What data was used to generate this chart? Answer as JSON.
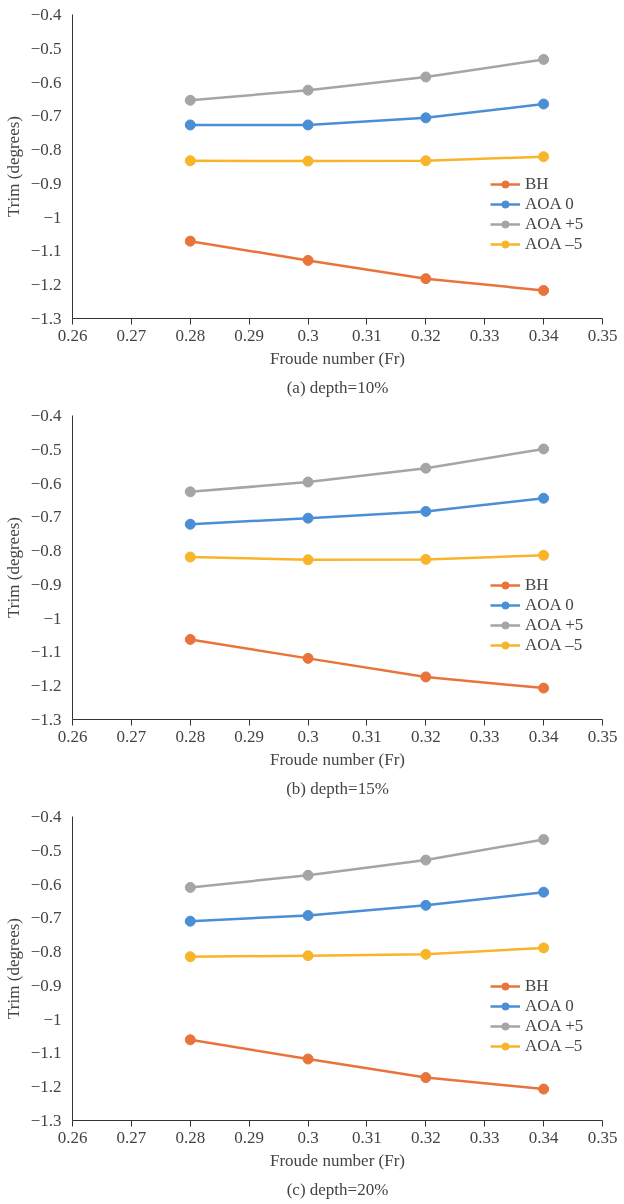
{
  "chart_data": [
    {
      "type": "line",
      "title": "(a) depth=10%",
      "xlabel": "Froude number (Fr)",
      "ylabel": "Trim (degrees)",
      "x": [
        0.28,
        0.3,
        0.32,
        0.34
      ],
      "series": [
        {
          "name": "BH",
          "color": "#e8743b",
          "values": [
            -1.071,
            -1.128,
            -1.182,
            -1.217
          ]
        },
        {
          "name": "AOA 0",
          "color": "#4a8fd6",
          "values": [
            -0.727,
            -0.727,
            -0.706,
            -0.665
          ]
        },
        {
          "name": "AOA +5",
          "color": "#a5a5a5",
          "values": [
            -0.654,
            -0.624,
            -0.585,
            -0.533
          ]
        },
        {
          "name": "AOA –5",
          "color": "#f9b52a",
          "values": [
            -0.833,
            -0.834,
            -0.833,
            -0.821
          ]
        }
      ],
      "xlim": [
        0.26,
        0.35
      ],
      "xticks": [
        0.26,
        0.27,
        0.28,
        0.29,
        0.3,
        0.31,
        0.32,
        0.33,
        0.34,
        0.35
      ],
      "ylim": [
        -1.3,
        -0.4
      ],
      "yticks": [
        {
          "value": -1.3,
          "label": "−1.3"
        },
        {
          "value": -1.2,
          "label": "−1.2"
        },
        {
          "value": -1.1,
          "label": "−1.1"
        },
        {
          "value": -1.0,
          "label": "−1"
        },
        {
          "value": -0.9,
          "label": "−0.9"
        },
        {
          "value": -0.8,
          "label": "−0.8"
        },
        {
          "value": -0.7,
          "label": "−0.7"
        },
        {
          "value": -0.6,
          "label": "−0.6"
        },
        {
          "value": -0.5,
          "label": "−0.5"
        },
        {
          "value": -0.4,
          "label": "−0.4"
        }
      ],
      "grid": false,
      "legend": "right",
      "marker": "circle",
      "line_style": "solid"
    },
    {
      "type": "line",
      "title": "(b) depth=15%",
      "xlabel": "Froude number (Fr)",
      "ylabel": "Trim (degrees)",
      "x": [
        0.28,
        0.3,
        0.32,
        0.34
      ],
      "series": [
        {
          "name": "BH",
          "color": "#e8743b",
          "values": [
            -1.063,
            -1.119,
            -1.174,
            -1.207
          ]
        },
        {
          "name": "AOA 0",
          "color": "#4a8fd6",
          "values": [
            -0.722,
            -0.704,
            -0.684,
            -0.645
          ]
        },
        {
          "name": "AOA +5",
          "color": "#a5a5a5",
          "values": [
            -0.626,
            -0.597,
            -0.556,
            -0.499
          ]
        },
        {
          "name": "AOA –5",
          "color": "#f9b52a",
          "values": [
            -0.819,
            -0.827,
            -0.826,
            -0.814
          ]
        }
      ],
      "xlim": [
        0.26,
        0.35
      ],
      "xticks": [
        0.26,
        0.27,
        0.28,
        0.29,
        0.3,
        0.31,
        0.32,
        0.33,
        0.34,
        0.35
      ],
      "ylim": [
        -1.3,
        -0.4
      ],
      "yticks": [
        {
          "value": -1.3,
          "label": "−1.3"
        },
        {
          "value": -1.2,
          "label": "−1.2"
        },
        {
          "value": -1.1,
          "label": "−1.1"
        },
        {
          "value": -1.0,
          "label": "−1"
        },
        {
          "value": -0.9,
          "label": "−0.9"
        },
        {
          "value": -0.8,
          "label": "−0.8"
        },
        {
          "value": -0.7,
          "label": "−0.7"
        },
        {
          "value": -0.6,
          "label": "−0.6"
        },
        {
          "value": -0.5,
          "label": "−0.5"
        },
        {
          "value": -0.4,
          "label": "−0.4"
        }
      ],
      "grid": false,
      "legend": "right",
      "marker": "circle",
      "line_style": "solid"
    },
    {
      "type": "line",
      "title": "(c) depth=20%",
      "xlabel": "Froude number (Fr)",
      "ylabel": "Trim (degrees)",
      "x": [
        0.28,
        0.3,
        0.32,
        0.34
      ],
      "series": [
        {
          "name": "BH",
          "color": "#e8743b",
          "values": [
            -1.061,
            -1.118,
            -1.173,
            -1.207
          ]
        },
        {
          "name": "AOA 0",
          "color": "#4a8fd6",
          "values": [
            -0.71,
            -0.693,
            -0.663,
            -0.624
          ]
        },
        {
          "name": "AOA +5",
          "color": "#a5a5a5",
          "values": [
            -0.61,
            -0.574,
            -0.529,
            -0.468
          ]
        },
        {
          "name": "AOA –5",
          "color": "#f9b52a",
          "values": [
            -0.815,
            -0.812,
            -0.808,
            -0.789
          ]
        }
      ],
      "xlim": [
        0.26,
        0.35
      ],
      "xticks": [
        0.26,
        0.27,
        0.28,
        0.29,
        0.3,
        0.31,
        0.32,
        0.33,
        0.34,
        0.35
      ],
      "ylim": [
        -1.3,
        -0.4
      ],
      "yticks": [
        {
          "value": -1.3,
          "label": "−1.3"
        },
        {
          "value": -1.2,
          "label": "−1.2"
        },
        {
          "value": -1.1,
          "label": "−1.1"
        },
        {
          "value": -1.0,
          "label": "−1"
        },
        {
          "value": -0.9,
          "label": "−0.9"
        },
        {
          "value": -0.8,
          "label": "−0.8"
        },
        {
          "value": -0.7,
          "label": "−0.7"
        },
        {
          "value": -0.6,
          "label": "−0.6"
        },
        {
          "value": -0.5,
          "label": "−0.5"
        },
        {
          "value": -0.4,
          "label": "−0.4"
        }
      ],
      "grid": false,
      "legend": "right",
      "marker": "circle",
      "line_style": "solid"
    }
  ]
}
